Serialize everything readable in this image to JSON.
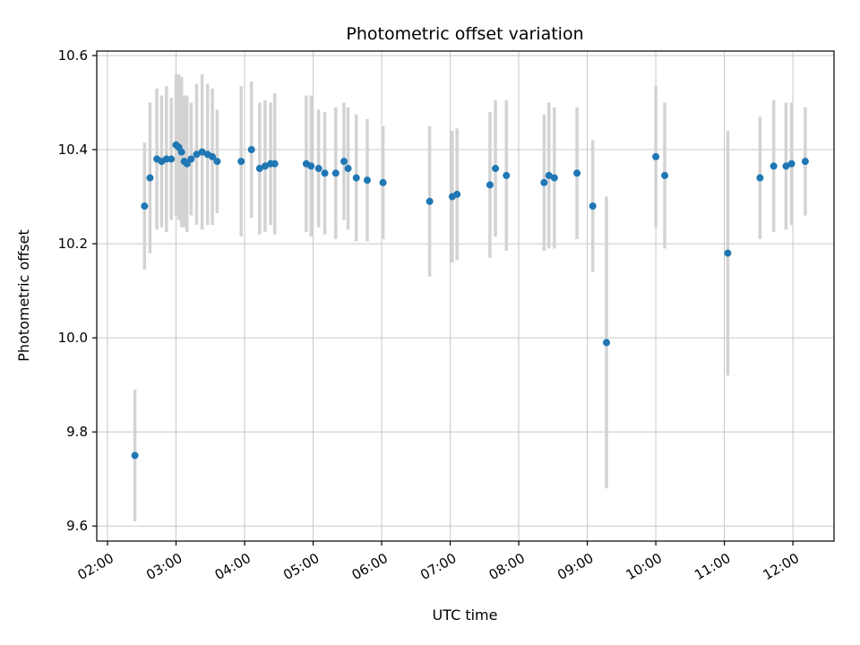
{
  "chart_data": {
    "type": "scatter",
    "title": "Photometric offset variation",
    "xlabel": "UTC time",
    "ylabel": "Photometric offset",
    "xlim": [
      1.843,
      12.6
    ],
    "ylim": [
      9.568,
      10.6095
    ],
    "grid": true,
    "legend": false,
    "marker_color": "#1f77b4",
    "errorbar_color": "#d3d3d3",
    "grid_color": "#c8c8c8",
    "xticks": [
      {
        "value": 2,
        "label": "02:00"
      },
      {
        "value": 3,
        "label": "03:00"
      },
      {
        "value": 4,
        "label": "04:00"
      },
      {
        "value": 5,
        "label": "05:00"
      },
      {
        "value": 6,
        "label": "06:00"
      },
      {
        "value": 7,
        "label": "07:00"
      },
      {
        "value": 8,
        "label": "08:00"
      },
      {
        "value": 9,
        "label": "09:00"
      },
      {
        "value": 10,
        "label": "10:00"
      },
      {
        "value": 11,
        "label": "11:00"
      },
      {
        "value": 12,
        "label": "12:00"
      }
    ],
    "yticks": [
      {
        "value": 9.6,
        "label": "9.6"
      },
      {
        "value": 9.8,
        "label": "9.8"
      },
      {
        "value": 10.0,
        "label": "10.0"
      },
      {
        "value": 10.2,
        "label": "10.2"
      },
      {
        "value": 10.4,
        "label": "10.4"
      },
      {
        "value": 10.6,
        "label": "10.6"
      }
    ],
    "point_format": [
      "utc_hours",
      "photometric_offset",
      "error"
    ],
    "points": [
      [
        2.4,
        9.75,
        0.14
      ],
      [
        2.54,
        10.28,
        0.135
      ],
      [
        2.62,
        10.34,
        0.16
      ],
      [
        2.72,
        10.38,
        0.15
      ],
      [
        2.79,
        10.375,
        0.14
      ],
      [
        2.86,
        10.38,
        0.155
      ],
      [
        2.93,
        10.38,
        0.13
      ],
      [
        3.0,
        10.41,
        0.15
      ],
      [
        3.04,
        10.405,
        0.155
      ],
      [
        3.08,
        10.395,
        0.16
      ],
      [
        3.12,
        10.375,
        0.14
      ],
      [
        3.16,
        10.37,
        0.145
      ],
      [
        3.22,
        10.38,
        0.12
      ],
      [
        3.3,
        10.39,
        0.15
      ],
      [
        3.38,
        10.395,
        0.165
      ],
      [
        3.46,
        10.39,
        0.15
      ],
      [
        3.53,
        10.385,
        0.145
      ],
      [
        3.6,
        10.375,
        0.11
      ],
      [
        3.95,
        10.375,
        0.16
      ],
      [
        4.1,
        10.4,
        0.145
      ],
      [
        4.22,
        10.36,
        0.14
      ],
      [
        4.3,
        10.365,
        0.14
      ],
      [
        4.38,
        10.37,
        0.13
      ],
      [
        4.44,
        10.37,
        0.15
      ],
      [
        4.9,
        10.37,
        0.145
      ],
      [
        4.97,
        10.365,
        0.15
      ],
      [
        5.08,
        10.36,
        0.125
      ],
      [
        5.17,
        10.35,
        0.13
      ],
      [
        5.33,
        10.35,
        0.14
      ],
      [
        5.45,
        10.375,
        0.125
      ],
      [
        5.51,
        10.36,
        0.13
      ],
      [
        5.63,
        10.34,
        0.135
      ],
      [
        5.79,
        10.335,
        0.13
      ],
      [
        6.02,
        10.33,
        0.12
      ],
      [
        6.7,
        10.29,
        0.16
      ],
      [
        7.03,
        10.3,
        0.14
      ],
      [
        7.1,
        10.305,
        0.14
      ],
      [
        7.58,
        10.325,
        0.155
      ],
      [
        7.66,
        10.36,
        0.145
      ],
      [
        7.82,
        10.345,
        0.16
      ],
      [
        8.37,
        10.33,
        0.145
      ],
      [
        8.44,
        10.345,
        0.155
      ],
      [
        8.52,
        10.34,
        0.15
      ],
      [
        8.85,
        10.35,
        0.14
      ],
      [
        9.08,
        10.28,
        0.14
      ],
      [
        9.28,
        9.99,
        0.31
      ],
      [
        10.0,
        10.385,
        0.15
      ],
      [
        10.13,
        10.345,
        0.155
      ],
      [
        11.05,
        10.18,
        0.26
      ],
      [
        11.52,
        10.34,
        0.13
      ],
      [
        11.72,
        10.365,
        0.14
      ],
      [
        11.9,
        10.365,
        0.135
      ],
      [
        11.98,
        10.37,
        0.13
      ],
      [
        12.18,
        10.375,
        0.115
      ]
    ]
  }
}
